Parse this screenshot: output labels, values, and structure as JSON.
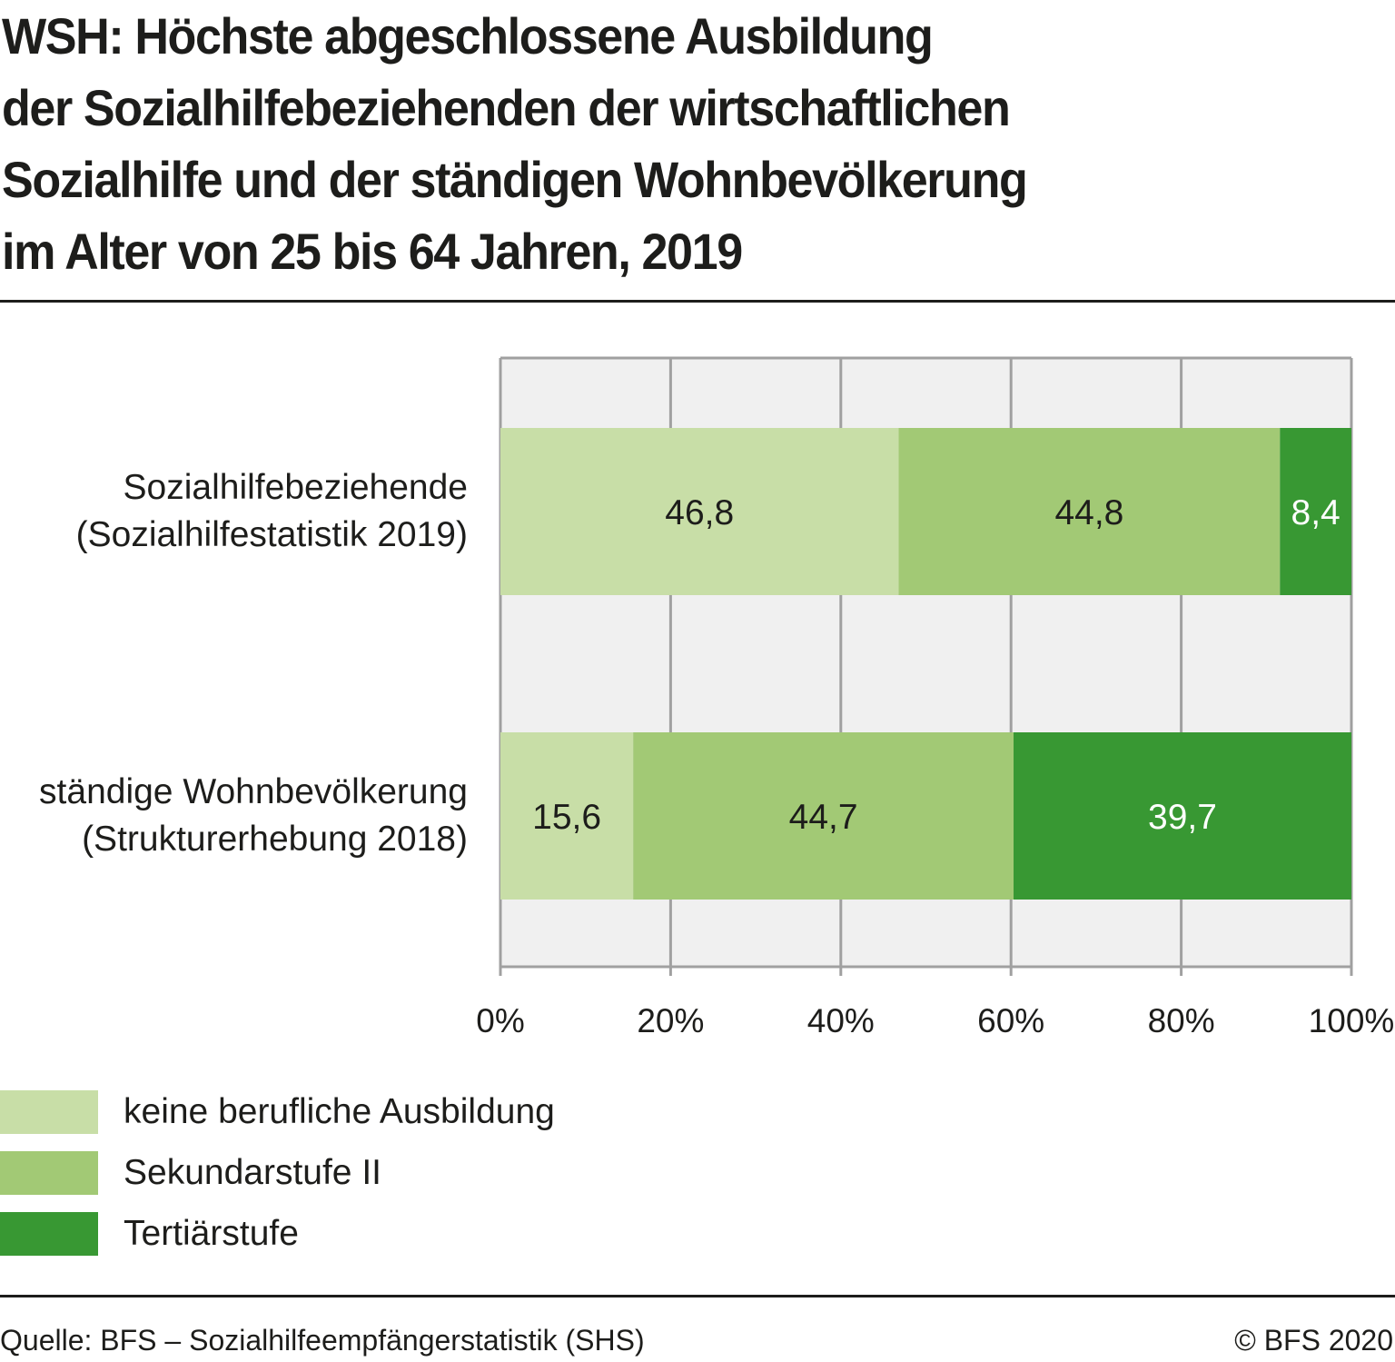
{
  "title_lines": [
    "WSH: Höchste abgeschlossene Ausbildung",
    "der Sozialhilfebeziehenden der wirtschaftlichen",
    "Sozialhilfe und der ständigen Wohnbevölkerung",
    "im Alter von 25 bis 64 Jahren, 2019"
  ],
  "colors": {
    "plot_background": "#f0f0f0",
    "gridline": "#a0a0a0",
    "keine_berufliche_ausbildung": "#c8dea7",
    "sekundarstufe_ii": "#a2c975",
    "tertiaerstufe": "#389833",
    "text_dark": "#1d1d1b",
    "text_light": "#ffffff"
  },
  "chart_data": {
    "type": "bar",
    "orientation": "horizontal",
    "stacked": true,
    "title": "WSH: Höchste abgeschlossene Ausbildung der Sozialhilfebeziehenden der wirtschaftlichen Sozialhilfe und der ständigen Wohnbevölkerung im Alter von 25 bis 64 Jahren, 2019",
    "categories": [
      {
        "line1": "Sozialhilfebeziehende",
        "line2": "(Sozialhilfestatistik 2019)"
      },
      {
        "line1": "ständige Wohnbevölkerung",
        "line2": "(Strukturerhebung 2018)"
      }
    ],
    "series": [
      {
        "name": "keine berufliche Ausbildung",
        "color": "#c8dea7",
        "label_color": "#1d1d1b",
        "values": [
          46.8,
          15.6
        ],
        "labels": [
          "46,8",
          "15,6"
        ]
      },
      {
        "name": "Sekundarstufe II",
        "color": "#a2c975",
        "label_color": "#1d1d1b",
        "values": [
          44.8,
          44.7
        ],
        "labels": [
          "44,8",
          "44,7"
        ]
      },
      {
        "name": "Tertiärstufe",
        "color": "#389833",
        "label_color": "#ffffff",
        "values": [
          8.4,
          39.7
        ],
        "labels": [
          "8,4",
          "39,7"
        ]
      }
    ],
    "xlim": [
      0,
      100
    ],
    "xticks": [
      0,
      20,
      40,
      60,
      80,
      100
    ],
    "xtick_labels": [
      "0%",
      "20%",
      "40%",
      "60%",
      "80%",
      "100%"
    ],
    "xlabel": "",
    "ylabel": "",
    "grid": true,
    "legend_position": "bottom-left"
  },
  "legend": [
    {
      "label": "keine berufliche Ausbildung",
      "color": "#c8dea7"
    },
    {
      "label": "Sekundarstufe II",
      "color": "#a2c975"
    },
    {
      "label": "Tertiärstufe",
      "color": "#389833"
    }
  ],
  "footer": {
    "source": "Quelle: BFS – Sozialhilfeempfängerstatistik (SHS)",
    "copyright": "© BFS 2020"
  }
}
